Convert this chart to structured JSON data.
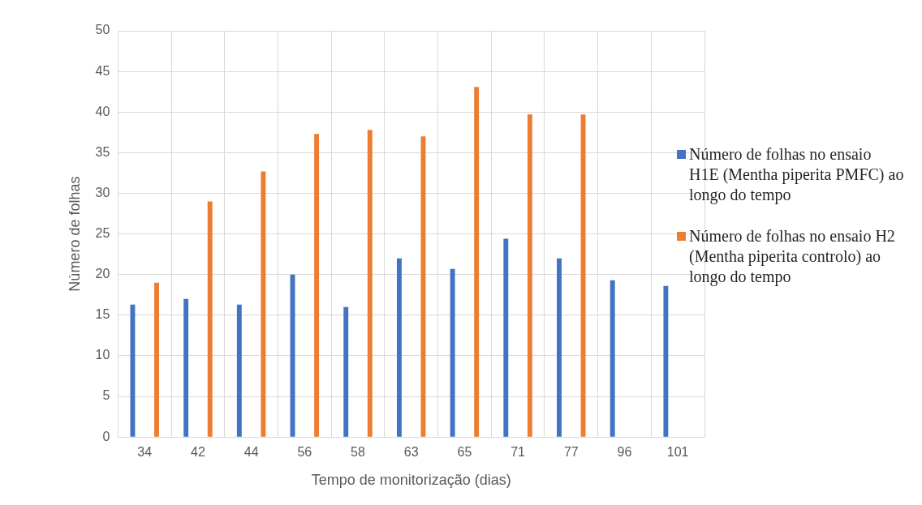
{
  "chart_data": {
    "type": "bar",
    "xlabel": "Tempo de monitorização (dias)",
    "ylabel": "Número de folhas",
    "categories": [
      "34",
      "42",
      "44",
      "56",
      "58",
      "63",
      "65",
      "71",
      "77",
      "96",
      "101"
    ],
    "series": [
      {
        "name": "Número de folhas no ensaio H1E (Mentha piperita PMFC) ao longo do tempo",
        "color": "#4472c4",
        "values": [
          16.3,
          17.0,
          16.3,
          20.0,
          16.0,
          22.0,
          20.7,
          24.4,
          22.0,
          19.3,
          18.6
        ]
      },
      {
        "name": "Número de folhas no ensaio H2 (Mentha piperita controlo) ao longo do tempo",
        "color": "#ed7d31",
        "values": [
          19.0,
          29.0,
          32.7,
          37.3,
          37.8,
          37.0,
          43.1,
          39.7,
          39.7,
          null,
          null
        ]
      }
    ],
    "ylim": [
      0,
      50
    ],
    "yticks": [
      0,
      5,
      10,
      15,
      20,
      25,
      30,
      35,
      40,
      45,
      50
    ],
    "grid": true,
    "legend": "right"
  }
}
